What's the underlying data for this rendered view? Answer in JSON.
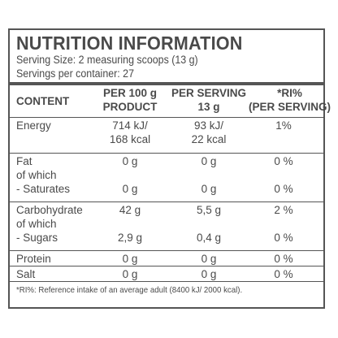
{
  "title": "NUTRITION INFORMATION",
  "serving_size": "Serving Size: 2 measuring scoops (13 g)",
  "servings_per_container": "Servings per container: 27",
  "columns": {
    "content": "CONTENT",
    "per100_line1": "PER 100 g",
    "per100_line2": "PRODUCT",
    "perserving_line1": "PER SERVING",
    "perserving_line2": "13 g",
    "ri_line1": "*RI%",
    "ri_line2": "(PER SERVING)"
  },
  "rows": {
    "energy": {
      "label": "Energy",
      "per100_kj": "714 kJ/",
      "per100_kcal": "168 kcal",
      "serving_kj": "93 kJ/",
      "serving_kcal": "22 kcal",
      "ri": "1%"
    },
    "fat": {
      "label": "Fat",
      "per100": "0 g",
      "serving": "0 g",
      "ri": "0 %"
    },
    "fat_of_which": "of which",
    "saturates": {
      "label": "- Saturates",
      "per100": "0 g",
      "serving": "0 g",
      "ri": "0 %"
    },
    "carbohydrate": {
      "label": "Carbohydrate",
      "per100": "42 g",
      "serving": "5,5 g",
      "ri": "2 %"
    },
    "carb_of_which": "of which",
    "sugars": {
      "label": "- Sugars",
      "per100": "2,9 g",
      "serving": "0,4 g",
      "ri": "0 %"
    },
    "protein": {
      "label": "Protein",
      "per100": "0 g",
      "serving": "0 g",
      "ri": "0 %"
    },
    "salt": {
      "label": "Salt",
      "per100": "0 g",
      "serving": "0 g",
      "ri": "0 %"
    }
  },
  "footnote": "*RI%: Reference intake of an average adult (8400 kJ/ 2000 kcal).",
  "colors": {
    "text": "#4a4a4a",
    "rule": "#555555",
    "background": "#ffffff"
  }
}
